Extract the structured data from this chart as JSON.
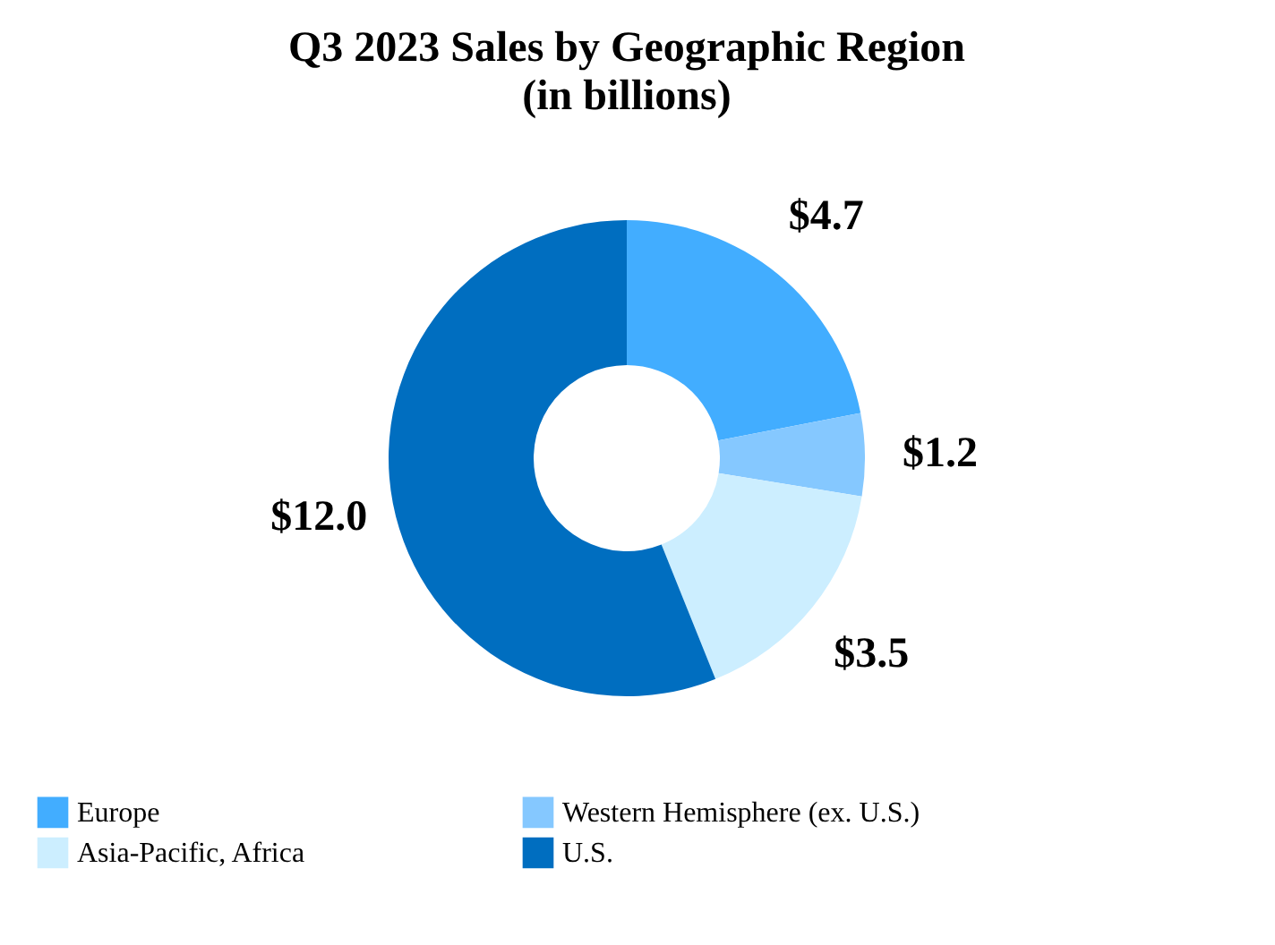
{
  "chart_data": {
    "type": "donut",
    "title": "Q3 2023 Sales by Geographic Region",
    "subtitle": "(in billions)",
    "categories": [
      "Europe",
      "Western Hemisphere (ex. U.S.)",
      "Asia-Pacific, Africa",
      "U.S."
    ],
    "values": [
      4.7,
      1.2,
      3.5,
      12.0
    ],
    "value_labels": [
      "$4.7",
      "$1.2",
      "$3.5",
      "$12.0"
    ],
    "colors": [
      "#42adff",
      "#85c8ff",
      "#cceeff",
      "#006ec0"
    ],
    "legend": "bottom"
  }
}
